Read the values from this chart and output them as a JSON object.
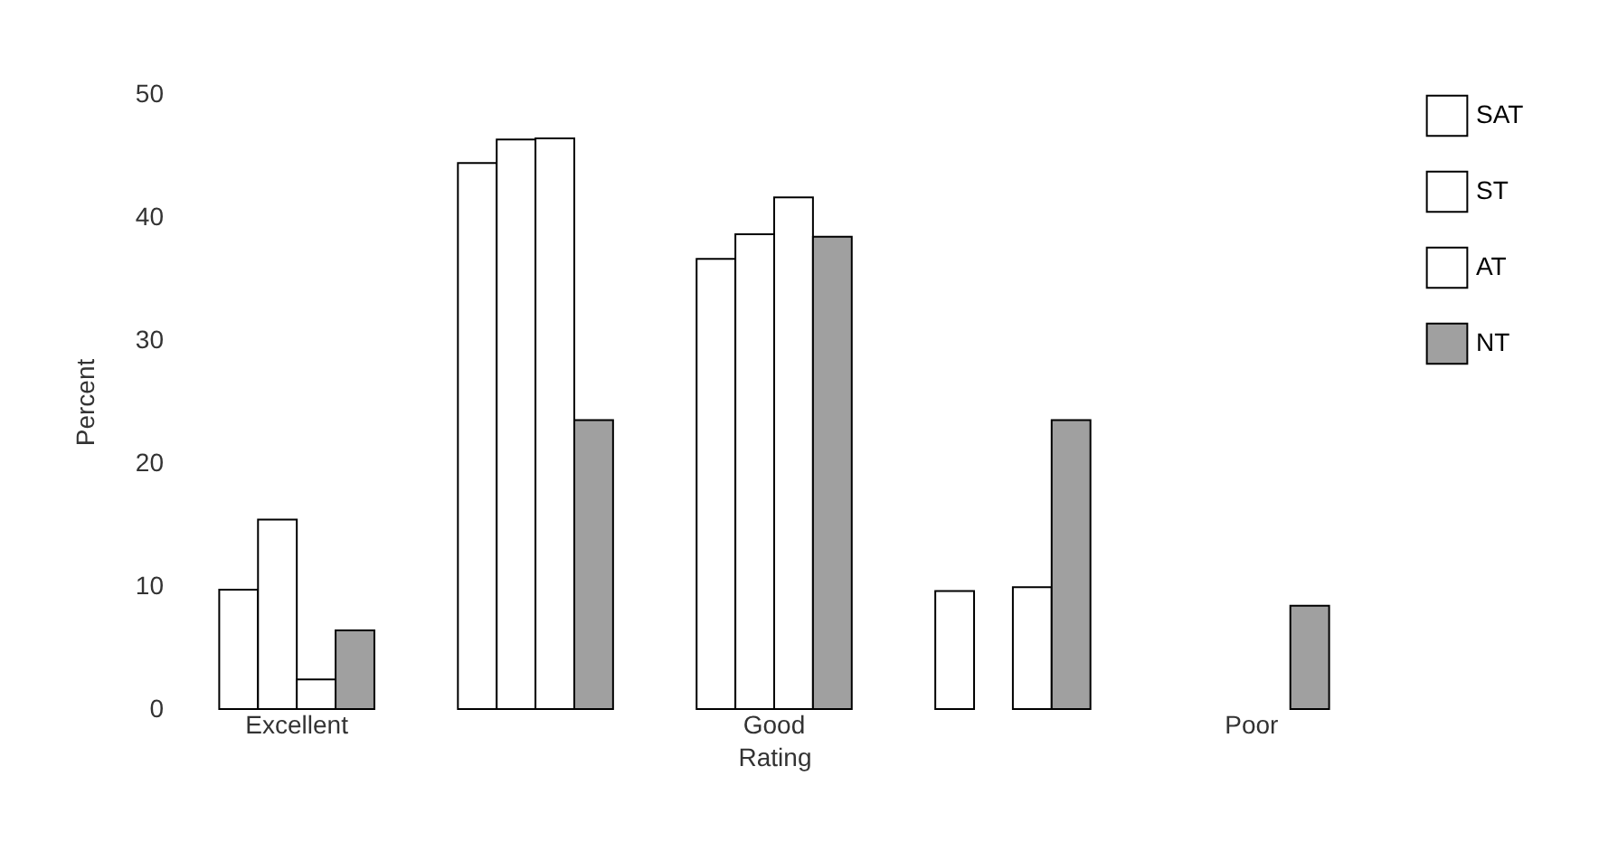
{
  "chart_data": {
    "type": "bar",
    "xlabel": "Rating",
    "ylabel": "Percent",
    "categories": [
      "Excellent",
      null,
      "Good",
      null,
      "Poor"
    ],
    "series": [
      {
        "name": "SAT",
        "color": "#ffffff",
        "values": [
          9.7,
          44.4,
          36.6,
          9.6,
          null
        ]
      },
      {
        "name": "ST",
        "color": "#ffffff",
        "values": [
          15.4,
          46.3,
          38.6,
          null,
          null
        ]
      },
      {
        "name": "AT",
        "color": "#ffffff",
        "values": [
          2.4,
          46.4,
          41.6,
          9.9,
          null
        ]
      },
      {
        "name": "NT",
        "color": "#a0a0a0",
        "values": [
          6.4,
          23.5,
          38.4,
          23.5,
          8.4
        ]
      }
    ],
    "ylim": [
      0,
      50
    ],
    "yticks": [
      0,
      10,
      20,
      30,
      40,
      50
    ],
    "grid": false,
    "legend": "right"
  }
}
